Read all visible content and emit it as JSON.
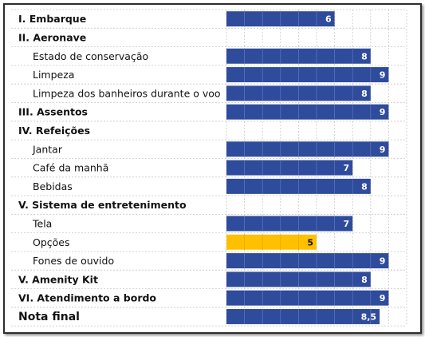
{
  "chart_data": {
    "type": "bar",
    "orientation": "horizontal",
    "xlim": [
      0,
      10
    ],
    "grid": true,
    "colors": {
      "bar": "#2F4B9C",
      "highlight": "#FFC000",
      "grid": "#C8C8C8",
      "label_on_bar": "#FFFFFF",
      "label_on_highlight": "#111111"
    },
    "rows": [
      {
        "label": "I. Embarque",
        "value": 6,
        "value_label": "6",
        "style": "heading"
      },
      {
        "label": "II. Aeronave",
        "value": null,
        "value_label": "",
        "style": "heading"
      },
      {
        "label": "Estado de conservação",
        "value": 8,
        "value_label": "8",
        "style": "sub"
      },
      {
        "label": "Limpeza",
        "value": 9,
        "value_label": "9",
        "style": "sub"
      },
      {
        "label": "Limpeza dos banheiros durante o voo",
        "value": 8,
        "value_label": "8",
        "style": "sub"
      },
      {
        "label": "III. Assentos",
        "value": 9,
        "value_label": "9",
        "style": "heading"
      },
      {
        "label": "IV. Refeições",
        "value": null,
        "value_label": "",
        "style": "heading"
      },
      {
        "label": "Jantar",
        "value": 9,
        "value_label": "9",
        "style": "sub"
      },
      {
        "label": "Café da manhã",
        "value": 7,
        "value_label": "7",
        "style": "sub"
      },
      {
        "label": "Bebidas",
        "value": 8,
        "value_label": "8",
        "style": "sub"
      },
      {
        "label": "V. Sistema de entretenimento",
        "value": null,
        "value_label": "",
        "style": "heading"
      },
      {
        "label": "Tela",
        "value": 7,
        "value_label": "7",
        "style": "sub"
      },
      {
        "label": "Opções",
        "value": 5,
        "value_label": "5",
        "style": "sub",
        "highlight": true
      },
      {
        "label": "Fones de ouvido",
        "value": 9,
        "value_label": "9",
        "style": "sub"
      },
      {
        "label": "V. Amenity Kit",
        "value": 8,
        "value_label": "8",
        "style": "heading"
      },
      {
        "label": "VI. Atendimento a bordo",
        "value": 9,
        "value_label": "9",
        "style": "heading"
      },
      {
        "label": "Nota final",
        "value": 8.5,
        "value_label": "8,5",
        "style": "final"
      }
    ]
  }
}
